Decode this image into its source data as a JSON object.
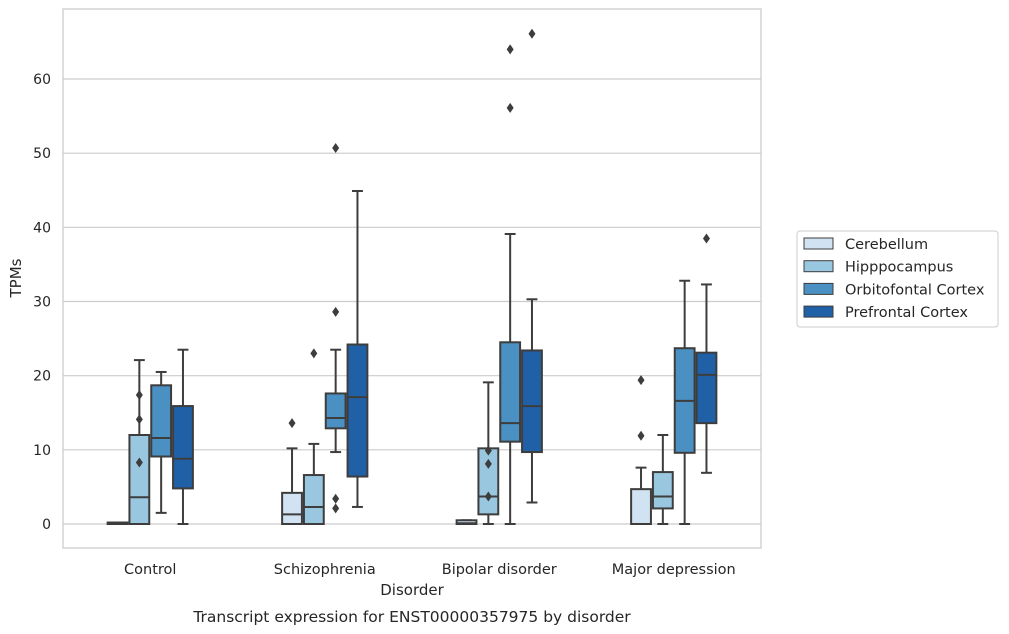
{
  "chart_data": {
    "type": "boxplot",
    "caption": "Transcript expression for ENST00000357975 by disorder",
    "xlabel": "Disorder",
    "ylabel": "TPMs",
    "ylim": [
      -3.2,
      69.5
    ],
    "yticks": [
      0,
      10,
      20,
      30,
      40,
      50,
      60
    ],
    "grid": true,
    "legend_position": "right",
    "categories": [
      "Control",
      "Schizophrenia",
      "Bipolar disorder",
      "Major depression"
    ],
    "series": [
      {
        "name": "Cerebellum",
        "color": "#d1e2f2",
        "boxes": [
          {
            "whislo": 0,
            "q1": 0,
            "med": 0.1,
            "q3": 0.2,
            "whishi": 0.2,
            "fliers": []
          },
          {
            "whislo": 0,
            "q1": 0,
            "med": 1.3,
            "q3": 4.2,
            "whishi": 10.2,
            "fliers": [
              13.6
            ]
          },
          {
            "whislo": 0,
            "q1": 0,
            "med": 0.1,
            "q3": 0.5,
            "whishi": 0.5,
            "fliers": []
          },
          {
            "whislo": 0,
            "q1": 0,
            "med": 0,
            "q3": 4.7,
            "whishi": 7.6,
            "fliers": [
              11.9,
              19.4
            ]
          }
        ]
      },
      {
        "name": "Hipppocampus",
        "color": "#9ac7e0",
        "boxes": [
          {
            "whislo": 0,
            "q1": 0,
            "med": 3.6,
            "q3": 12.0,
            "whishi": 22.1,
            "fliers": [
              8.3,
              14.1,
              17.4
            ]
          },
          {
            "whislo": 0,
            "q1": 0,
            "med": 2.3,
            "q3": 6.6,
            "whishi": 10.8,
            "fliers": [
              23.0
            ]
          },
          {
            "whislo": 0,
            "q1": 1.3,
            "med": 3.7,
            "q3": 10.2,
            "whishi": 19.1,
            "fliers": [
              3.7,
              8.1,
              9.9
            ]
          },
          {
            "whislo": 0,
            "q1": 2.1,
            "med": 3.7,
            "q3": 7.0,
            "whishi": 12.0,
            "fliers": []
          }
        ]
      },
      {
        "name": "Orbitofontal Cortex",
        "color": "#4a90c2",
        "boxes": [
          {
            "whislo": 1.5,
            "q1": 9.1,
            "med": 11.6,
            "q3": 18.7,
            "whishi": 20.5,
            "fliers": []
          },
          {
            "whislo": 9.7,
            "q1": 12.9,
            "med": 14.3,
            "q3": 17.6,
            "whishi": 23.5,
            "fliers": [
              2.1,
              3.4,
              28.6,
              50.7
            ]
          },
          {
            "whislo": 0,
            "q1": 11.1,
            "med": 13.6,
            "q3": 24.5,
            "whishi": 39.1,
            "fliers": [
              56.1,
              64.0
            ]
          },
          {
            "whislo": 0,
            "q1": 9.6,
            "med": 16.6,
            "q3": 23.7,
            "whishi": 32.8,
            "fliers": []
          }
        ]
      },
      {
        "name": "Prefrontal Cortex",
        "color": "#2060a7",
        "boxes": [
          {
            "whislo": 0,
            "q1": 4.8,
            "med": 8.8,
            "q3": 15.9,
            "whishi": 23.5,
            "fliers": []
          },
          {
            "whislo": 2.3,
            "q1": 6.4,
            "med": 17.1,
            "q3": 24.2,
            "whishi": 44.9,
            "fliers": []
          },
          {
            "whislo": 2.9,
            "q1": 9.7,
            "med": 15.9,
            "q3": 23.4,
            "whishi": 30.3,
            "fliers": [
              66.1
            ]
          },
          {
            "whislo": 6.9,
            "q1": 13.6,
            "med": 20.1,
            "q3": 23.1,
            "whishi": 32.3,
            "fliers": [
              38.5
            ]
          }
        ]
      }
    ]
  }
}
